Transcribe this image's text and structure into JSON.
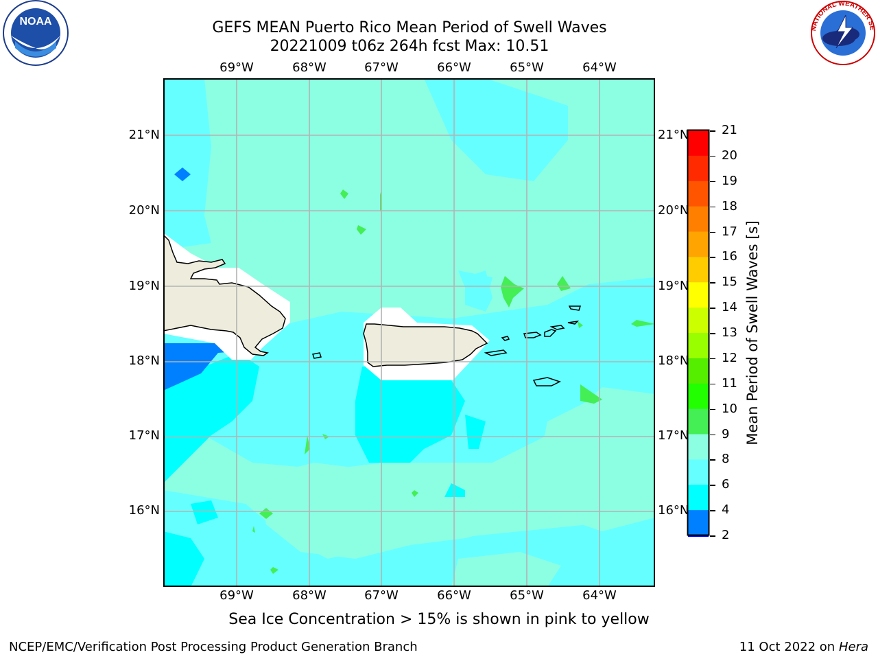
{
  "title": {
    "line1": "GEFS MEAN Puerto Rico Mean Period of Swell Waves",
    "line2": "20221009 t06z 264h fcst   Max: 10.51"
  },
  "map": {
    "lon_labels": [
      "69°W",
      "68°W",
      "67°W",
      "66°W",
      "65°W",
      "64°W"
    ],
    "lat_labels": [
      "21°N",
      "20°N",
      "19°N",
      "18°N",
      "17°N",
      "16°N"
    ],
    "grid": true
  },
  "colorbar": {
    "label": "Mean Period of Swell Waves [s]",
    "ticks": [
      "21",
      "20",
      "19",
      "18",
      "17",
      "16",
      "15",
      "14",
      "13",
      "12",
      "11",
      "10",
      "9",
      "8",
      "6",
      "4",
      "2"
    ],
    "colors": [
      "#ff0000",
      "#ff2a00",
      "#ff5500",
      "#ff7f00",
      "#ffa400",
      "#ffcc00",
      "#ffff00",
      "#ccff00",
      "#99ff00",
      "#55ee00",
      "#22ff00",
      "#44ee55",
      "#8cffe3",
      "#66ffff",
      "#00ffff",
      "#0080ff",
      "#0000ff"
    ]
  },
  "note": "Sea Ice Concentration > 15% is shown in pink to yellow",
  "footer": {
    "left": "NCEP/EMC/Verification Post Processing Product Generation Branch",
    "date": "11 Oct 2022 on",
    "host": "Hera"
  },
  "logos": {
    "noaa": "NOAA",
    "nws": "NATIONAL WEATHER SERVICE"
  }
}
